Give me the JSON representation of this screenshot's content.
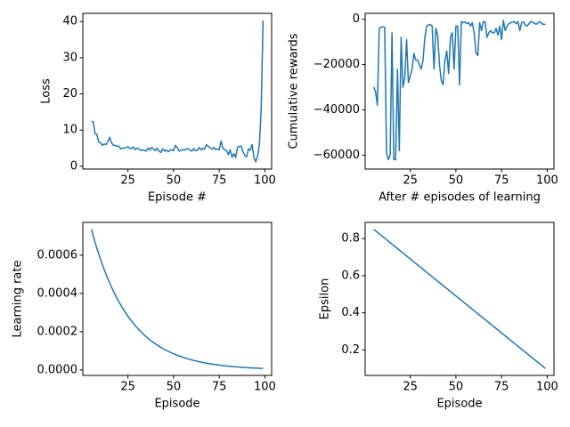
{
  "chart_data": [
    {
      "type": "line",
      "xlabel": "Episode #",
      "ylabel": "Loss",
      "color": "#1f77b4",
      "x": [
        5,
        6,
        7,
        8,
        9,
        10,
        11,
        12,
        13,
        14,
        15,
        16,
        17,
        18,
        19,
        20,
        21,
        22,
        23,
        24,
        25,
        26,
        27,
        28,
        29,
        30,
        31,
        32,
        33,
        34,
        35,
        36,
        37,
        38,
        39,
        40,
        41,
        42,
        43,
        44,
        45,
        46,
        47,
        48,
        49,
        50,
        51,
        52,
        53,
        54,
        55,
        56,
        57,
        58,
        59,
        60,
        61,
        62,
        63,
        64,
        65,
        66,
        67,
        68,
        69,
        70,
        71,
        72,
        73,
        74,
        75,
        76,
        77,
        78,
        79,
        80,
        81,
        82,
        83,
        84,
        85,
        86,
        87,
        88,
        89,
        90,
        91,
        92,
        93,
        94,
        95,
        96,
        97,
        98,
        99
      ],
      "values": [
        12.4,
        12.3,
        9,
        8.8,
        6.7,
        6.5,
        5.8,
        6.2,
        6,
        6.8,
        8,
        6.5,
        5.8,
        5.8,
        5.5,
        5.6,
        4.8,
        5,
        5,
        5.2,
        5.4,
        4.9,
        5,
        5.3,
        4.6,
        5,
        4.8,
        4.4,
        4.5,
        4.4,
        4.2,
        5,
        4.5,
        5.2,
        4.8,
        4.3,
        5,
        4.2,
        3.8,
        4.8,
        4.2,
        4.5,
        4,
        4.4,
        4.6,
        4.3,
        5.8,
        5.2,
        4.2,
        4.4,
        4.6,
        4.5,
        4.7,
        4.9,
        4.4,
        4.2,
        4.9,
        4.3,
        4.4,
        5.2,
        4.5,
        5,
        4.7,
        6,
        5.5,
        5,
        4.8,
        5.2,
        4.6,
        4.8,
        4.5,
        7,
        5,
        4.6,
        4.4,
        3.2,
        4.5,
        2.5,
        3.5,
        2.4,
        5.2,
        5.5,
        5.6,
        4,
        3,
        2.6,
        4.8,
        4.5,
        6,
        2.5,
        1.2,
        2.8,
        6,
        16,
        40.3
      ],
      "xlim": [
        0.3,
        103.7
      ],
      "xticks": [
        25,
        50,
        75,
        100
      ],
      "ylim": [
        -0.755,
        42.255
      ],
      "yticks": [
        0,
        10,
        20,
        30,
        40
      ]
    },
    {
      "type": "line",
      "xlabel": "After # episodes of learning",
      "ylabel": "Cumulative rewards",
      "color": "#1f77b4",
      "x": [
        5,
        6,
        7,
        8,
        9,
        10,
        11,
        12,
        13,
        14,
        15,
        16,
        17,
        18,
        19,
        20,
        21,
        22,
        23,
        24,
        25,
        26,
        27,
        28,
        29,
        30,
        31,
        32,
        33,
        34,
        35,
        36,
        37,
        38,
        39,
        40,
        41,
        42,
        43,
        44,
        45,
        46,
        47,
        48,
        49,
        50,
        51,
        52,
        53,
        54,
        55,
        56,
        57,
        58,
        59,
        60,
        61,
        62,
        63,
        64,
        65,
        66,
        67,
        68,
        69,
        70,
        71,
        72,
        73,
        74,
        75,
        76,
        77,
        78,
        79,
        80,
        81,
        82,
        83,
        84,
        85,
        86,
        87,
        88,
        89,
        90,
        91,
        92,
        93,
        94,
        95,
        96,
        97,
        98,
        99
      ],
      "values": [
        -30000,
        -32000,
        -38000,
        -4000,
        -3500,
        -3300,
        -3500,
        -59000,
        -62000,
        -60000,
        -6000,
        -62000,
        -62000,
        -22000,
        -58000,
        -8000,
        -30000,
        -26000,
        -9000,
        -28000,
        -25000,
        -22000,
        -15000,
        -18000,
        -18000,
        -20000,
        -22000,
        -18000,
        -8000,
        -3000,
        -2500,
        -2300,
        -3000,
        -22000,
        -4000,
        -7000,
        -20000,
        -27000,
        -29000,
        -18000,
        -14000,
        -24000,
        -8000,
        -6000,
        -22000,
        -3000,
        -3000,
        -29000,
        -1000,
        -1500,
        -1200,
        -2000,
        -1500,
        -3000,
        -1500,
        -6000,
        -15000,
        -16000,
        -1500,
        -5000,
        -1000,
        -1200,
        -8000,
        -6000,
        -5000,
        -6000,
        -6000,
        -4000,
        -7000,
        -3000,
        -9000,
        -500,
        -5000,
        -3000,
        -2000,
        -1500,
        -1200,
        -1000,
        -2000,
        -1000,
        -5000,
        -1500,
        -1200,
        -2500,
        -3000,
        -2000,
        -1000,
        -1200,
        -1800,
        -2200,
        -1500,
        -1000,
        -2000,
        -2200,
        -2300
      ],
      "xlim": [
        0.3,
        103.7
      ],
      "xticks": [
        25,
        50,
        75,
        100
      ],
      "ylim": [
        -66125,
        2625
      ],
      "yticks": [
        {
          "value": -60000,
          "label": "−60000"
        },
        {
          "value": -40000,
          "label": "−40000"
        },
        {
          "value": -20000,
          "label": "−20000"
        },
        0
      ]
    },
    {
      "type": "line",
      "xlabel": "Episode",
      "ylabel": "Learning rate",
      "color": "#1f77b4",
      "x": [
        5,
        6,
        7,
        8,
        9,
        10,
        11,
        12,
        13,
        14,
        15,
        16,
        17,
        18,
        19,
        20,
        21,
        22,
        23,
        24,
        25,
        26,
        27,
        28,
        29,
        30,
        31,
        32,
        33,
        34,
        35,
        36,
        37,
        38,
        39,
        40,
        41,
        42,
        43,
        44,
        45,
        46,
        47,
        48,
        49,
        50,
        51,
        52,
        53,
        54,
        55,
        56,
        57,
        58,
        59,
        60,
        61,
        62,
        63,
        64,
        65,
        66,
        67,
        68,
        69,
        70,
        71,
        72,
        73,
        74,
        75,
        76,
        77,
        78,
        79,
        80,
        81,
        82,
        83,
        84,
        85,
        86,
        87,
        88,
        89,
        90,
        91,
        92,
        93,
        94,
        95,
        96,
        97,
        98,
        99
      ],
      "values": [
        0.000735,
        0.0007005,
        0.0006677,
        0.0006364,
        0.0006065,
        0.0005781,
        0.000551,
        0.0005251,
        0.0005005,
        0.000477,
        0.0004546,
        0.0004333,
        0.000413,
        0.0003936,
        0.0003751,
        0.0003575,
        0.0003408,
        0.0003248,
        0.0003095,
        0.000295,
        0.0002812,
        0.000268,
        0.0002554,
        0.0002434,
        0.000232,
        0.0002211,
        0.0002108,
        0.0002009,
        0.0001914,
        0.0001825,
        0.0001739,
        0.0001658,
        0.000158,
        0.0001506,
        0.0001435,
        0.0001368,
        0.0001304,
        0.0001242,
        0.0001184,
        0.0001129,
        0.0001076,
        0.0001025,
        9.77e-05,
        9.31e-05,
        8.88e-05,
        8.46e-05,
        8.06e-05,
        7.69e-05,
        7.33e-05,
        6.98e-05,
        6.65e-05,
        6.34e-05,
        6.05e-05,
        5.76e-05,
        5.49e-05,
        5.23e-05,
        4.99e-05,
        4.75e-05,
        4.53e-05,
        4.32e-05,
        4.12e-05,
        3.92e-05,
        3.74e-05,
        3.56e-05,
        3.4e-05,
        3.24e-05,
        3.08e-05,
        2.94e-05,
        2.8e-05,
        2.67e-05,
        2.54e-05,
        2.42e-05,
        2.31e-05,
        2.2e-05,
        2.1e-05,
        2e-05,
        1.91e-05,
        1.82e-05,
        1.73e-05,
        1.65e-05,
        1.57e-05,
        1.5e-05,
        1.43e-05,
        1.36e-05,
        1.3e-05,
        1.24e-05,
        1.18e-05,
        1.12e-05,
        1.07e-05,
        1.02e-05,
        9.7e-06,
        9.3e-06,
        8.8e-06,
        8.4e-06,
        8e-06
      ],
      "xlim": [
        0.3,
        103.7
      ],
      "xticks": [
        25,
        50,
        75,
        100
      ],
      "ylim": [
        -2.84e-05,
        0.0007714
      ],
      "yticks": [
        {
          "value": 0,
          "label": "0.0000"
        },
        {
          "value": 0.0002,
          "label": "0.0002"
        },
        {
          "value": 0.0004,
          "label": "0.0004"
        },
        {
          "value": 0.0006,
          "label": "0.0006"
        }
      ]
    },
    {
      "type": "line",
      "xlabel": "Episode",
      "ylabel": "Epsilon",
      "color": "#1f77b4",
      "x": [
        5,
        6,
        7,
        8,
        9,
        10,
        11,
        12,
        13,
        14,
        15,
        16,
        17,
        18,
        19,
        20,
        21,
        22,
        23,
        24,
        25,
        26,
        27,
        28,
        29,
        30,
        31,
        32,
        33,
        34,
        35,
        36,
        37,
        38,
        39,
        40,
        41,
        42,
        43,
        44,
        45,
        46,
        47,
        48,
        49,
        50,
        51,
        52,
        53,
        54,
        55,
        56,
        57,
        58,
        59,
        60,
        61,
        62,
        63,
        64,
        65,
        66,
        67,
        68,
        69,
        70,
        71,
        72,
        73,
        74,
        75,
        76,
        77,
        78,
        79,
        80,
        81,
        82,
        83,
        84,
        85,
        86,
        87,
        88,
        89,
        90,
        91,
        92,
        93,
        94,
        95,
        96,
        97,
        98,
        99
      ],
      "values": [
        0.85,
        0.842,
        0.834,
        0.8261,
        0.8181,
        0.8101,
        0.8021,
        0.7941,
        0.7862,
        0.7782,
        0.7702,
        0.7622,
        0.7543,
        0.7463,
        0.7383,
        0.7303,
        0.7223,
        0.7144,
        0.7064,
        0.6984,
        0.6904,
        0.6824,
        0.6745,
        0.6665,
        0.6585,
        0.6505,
        0.6426,
        0.6346,
        0.6266,
        0.6186,
        0.6106,
        0.6027,
        0.5947,
        0.5867,
        0.5787,
        0.5707,
        0.5628,
        0.5548,
        0.5468,
        0.5388,
        0.5309,
        0.5229,
        0.5149,
        0.5069,
        0.4989,
        0.491,
        0.483,
        0.475,
        0.467,
        0.459,
        0.4511,
        0.4431,
        0.4351,
        0.4271,
        0.4191,
        0.4112,
        0.4032,
        0.3952,
        0.3872,
        0.3793,
        0.3713,
        0.3633,
        0.3553,
        0.3473,
        0.3394,
        0.3314,
        0.3234,
        0.3154,
        0.3074,
        0.2995,
        0.2915,
        0.2835,
        0.2755,
        0.2676,
        0.2596,
        0.2516,
        0.2436,
        0.2356,
        0.2277,
        0.2197,
        0.2117,
        0.2037,
        0.1957,
        0.1878,
        0.1798,
        0.1718,
        0.1638,
        0.1559,
        0.1479,
        0.1399,
        0.1319,
        0.1239,
        0.116,
        0.108,
        0.1
      ],
      "xlim": [
        0.3,
        103.7
      ],
      "xticks": [
        25,
        50,
        75,
        100
      ],
      "ylim": [
        0.0625,
        0.8875
      ],
      "yticks": [
        0.2,
        0.4,
        0.6,
        0.8
      ]
    }
  ]
}
